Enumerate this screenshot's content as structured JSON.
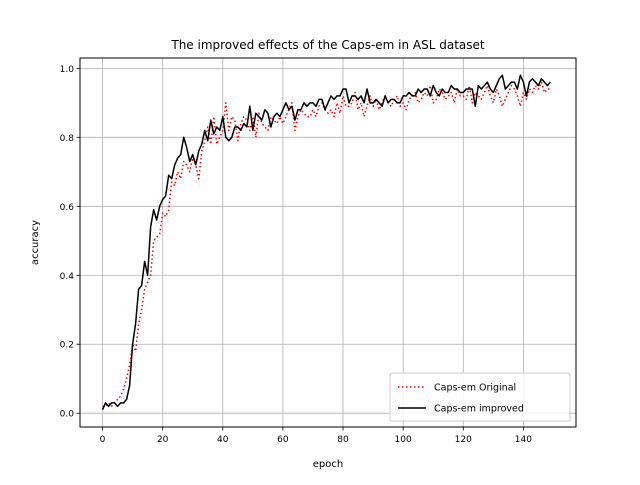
{
  "chart_data": {
    "type": "line",
    "title": "The improved effects of the Caps-em in ASL dataset",
    "xlabel": "epoch",
    "ylabel": "accuracy",
    "xlim": [
      -7.5,
      157.5
    ],
    "ylim": [
      -0.04,
      1.03
    ],
    "xticks": [
      0,
      20,
      40,
      60,
      80,
      100,
      120,
      140
    ],
    "xtick_labels": [
      "0",
      "20",
      "40",
      "60",
      "80",
      "100",
      "120",
      "140"
    ],
    "yticks": [
      0.0,
      0.2,
      0.4,
      0.6,
      0.8,
      1.0
    ],
    "ytick_labels": [
      "0.0",
      "0.2",
      "0.4",
      "0.6",
      "0.8",
      "1.0"
    ],
    "grid": true,
    "legend_position": "lower-right",
    "legend": [
      "Caps-em Original",
      "Caps-em improved"
    ],
    "colors": {
      "original": "#ff0000",
      "improved": "#000000",
      "grid": "#b0b0b0",
      "frame": "#000000"
    },
    "x": [
      0,
      1,
      2,
      3,
      4,
      5,
      6,
      7,
      8,
      9,
      10,
      11,
      12,
      13,
      14,
      15,
      16,
      17,
      18,
      19,
      20,
      21,
      22,
      23,
      24,
      25,
      26,
      27,
      28,
      29,
      30,
      31,
      32,
      33,
      34,
      35,
      36,
      37,
      38,
      39,
      40,
      41,
      42,
      43,
      44,
      45,
      46,
      47,
      48,
      49,
      50,
      51,
      52,
      53,
      54,
      55,
      56,
      57,
      58,
      59,
      60,
      61,
      62,
      63,
      64,
      65,
      66,
      67,
      68,
      69,
      70,
      71,
      72,
      73,
      74,
      75,
      76,
      77,
      78,
      79,
      80,
      81,
      82,
      83,
      84,
      85,
      86,
      87,
      88,
      89,
      90,
      91,
      92,
      93,
      94,
      95,
      96,
      97,
      98,
      99,
      100,
      101,
      102,
      103,
      104,
      105,
      106,
      107,
      108,
      109,
      110,
      111,
      112,
      113,
      114,
      115,
      116,
      117,
      118,
      119,
      120,
      121,
      122,
      123,
      124,
      125,
      126,
      127,
      128,
      129,
      130,
      131,
      132,
      133,
      134,
      135,
      136,
      137,
      138,
      139,
      140,
      141,
      142,
      143,
      144,
      145,
      146,
      147,
      148,
      149
    ],
    "series": [
      {
        "name": "Caps-em Original",
        "style": "dotted",
        "values": [
          0.02,
          0.02,
          0.03,
          0.02,
          0.03,
          0.04,
          0.05,
          0.07,
          0.1,
          0.14,
          0.2,
          0.18,
          0.26,
          0.3,
          0.36,
          0.38,
          0.4,
          0.5,
          0.51,
          0.52,
          0.58,
          0.57,
          0.59,
          0.67,
          0.66,
          0.7,
          0.68,
          0.73,
          0.72,
          0.7,
          0.74,
          0.72,
          0.68,
          0.76,
          0.79,
          0.83,
          0.78,
          0.86,
          0.78,
          0.8,
          0.82,
          0.9,
          0.82,
          0.86,
          0.85,
          0.79,
          0.84,
          0.86,
          0.85,
          0.82,
          0.86,
          0.8,
          0.87,
          0.84,
          0.83,
          0.82,
          0.86,
          0.85,
          0.84,
          0.86,
          0.84,
          0.86,
          0.88,
          0.9,
          0.82,
          0.86,
          0.88,
          0.87,
          0.86,
          0.86,
          0.88,
          0.86,
          0.89,
          0.9,
          0.88,
          0.87,
          0.88,
          0.86,
          0.9,
          0.87,
          0.92,
          0.89,
          0.89,
          0.9,
          0.93,
          0.88,
          0.9,
          0.86,
          0.89,
          0.92,
          0.89,
          0.91,
          0.88,
          0.9,
          0.92,
          0.9,
          0.89,
          0.91,
          0.92,
          0.89,
          0.9,
          0.88,
          0.91,
          0.92,
          0.93,
          0.9,
          0.91,
          0.93,
          0.92,
          0.95,
          0.9,
          0.91,
          0.94,
          0.93,
          0.91,
          0.92,
          0.93,
          0.9,
          0.94,
          0.92,
          0.92,
          0.91,
          0.95,
          0.9,
          0.93,
          0.92,
          0.91,
          0.93,
          0.95,
          0.92,
          0.9,
          0.94,
          0.92,
          0.89,
          0.91,
          0.93,
          0.95,
          0.94,
          0.92,
          0.89,
          0.93,
          0.91,
          0.94,
          0.93,
          0.95,
          0.94,
          0.96,
          0.93,
          0.94,
          0.94
        ]
      },
      {
        "name": "Caps-em improved",
        "style": "solid",
        "values": [
          0.01,
          0.03,
          0.02,
          0.03,
          0.03,
          0.02,
          0.03,
          0.03,
          0.04,
          0.08,
          0.2,
          0.26,
          0.36,
          0.37,
          0.44,
          0.4,
          0.54,
          0.59,
          0.56,
          0.6,
          0.62,
          0.63,
          0.69,
          0.68,
          0.72,
          0.74,
          0.75,
          0.8,
          0.77,
          0.73,
          0.75,
          0.72,
          0.76,
          0.78,
          0.82,
          0.79,
          0.85,
          0.81,
          0.83,
          0.82,
          0.86,
          0.8,
          0.79,
          0.8,
          0.83,
          0.83,
          0.82,
          0.84,
          0.83,
          0.89,
          0.82,
          0.87,
          0.86,
          0.85,
          0.88,
          0.87,
          0.83,
          0.86,
          0.87,
          0.86,
          0.88,
          0.9,
          0.88,
          0.89,
          0.85,
          0.88,
          0.88,
          0.9,
          0.89,
          0.9,
          0.9,
          0.89,
          0.91,
          0.91,
          0.88,
          0.9,
          0.92,
          0.91,
          0.92,
          0.92,
          0.94,
          0.94,
          0.9,
          0.92,
          0.92,
          0.91,
          0.92,
          0.9,
          0.94,
          0.9,
          0.9,
          0.91,
          0.9,
          0.89,
          0.92,
          0.9,
          0.91,
          0.91,
          0.9,
          0.9,
          0.92,
          0.92,
          0.93,
          0.92,
          0.92,
          0.94,
          0.93,
          0.94,
          0.94,
          0.92,
          0.95,
          0.93,
          0.92,
          0.94,
          0.93,
          0.93,
          0.95,
          0.94,
          0.94,
          0.93,
          0.93,
          0.94,
          0.94,
          0.94,
          0.89,
          0.95,
          0.94,
          0.95,
          0.96,
          0.94,
          0.93,
          0.95,
          0.97,
          0.98,
          0.94,
          0.95,
          0.96,
          0.96,
          0.94,
          0.98,
          0.96,
          0.92,
          0.96,
          0.97,
          0.96,
          0.95,
          0.97,
          0.96,
          0.95,
          0.96
        ]
      }
    ]
  }
}
